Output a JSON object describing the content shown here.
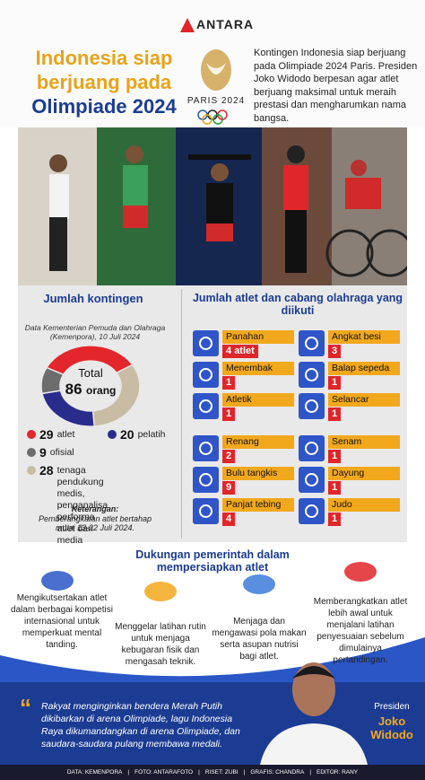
{
  "brand": "ANTARA",
  "title_lines": [
    "Indonesia siap",
    "berjuang pada",
    "Olimpiade 2024"
  ],
  "logo_text": "PARIS 2024",
  "intro": "Kontingen Indonesia siap berjuang pada Olimpiade 2024 Paris. Presiden Joko Widodo berpesan agar atlet berjuang maksimal untuk meraih prestasi dan mengharumkan nama bangsa.",
  "contingent": {
    "title": "Jumlah kontingen",
    "source": "Data Kementerian Pemuda dan Olahraga (Kemenpora), 10 Juli 2024",
    "total_label": "Total",
    "total": 86,
    "total_unit": "orang",
    "groups": [
      {
        "value": 29,
        "label": "atlet",
        "color": "#e3262c"
      },
      {
        "value": 28,
        "label": "tenaga pendukung medis, penganalisa performa atlet dan media",
        "color": "#c9bca4"
      },
      {
        "value": 20,
        "label": "pelatih",
        "color": "#2a2c8c"
      },
      {
        "value": 9,
        "label": "ofisial",
        "color": "#6d6d6d"
      }
    ],
    "note_title": "Keterangan:",
    "note": "Pemberangkatan atlet bertahap mulai 13-22 Juli 2024."
  },
  "sports": {
    "title": "Jumlah atlet dan cabang olahraga yang diikuti",
    "items": [
      {
        "name": "Panahan",
        "value": 4,
        "unit": "atlet"
      },
      {
        "name": "Menembak",
        "value": 1
      },
      {
        "name": "Atletik",
        "value": 1
      },
      {
        "name": "Renang",
        "value": 2
      },
      {
        "name": "Bulu tangkis",
        "value": 9
      },
      {
        "name": "Panjat tebing",
        "value": 4
      },
      {
        "name": "Angkat besi",
        "value": 3
      },
      {
        "name": "Balap sepeda",
        "value": 1
      },
      {
        "name": "Selancar",
        "value": 1
      },
      {
        "name": "Senam",
        "value": 1
      },
      {
        "name": "Dayung",
        "value": 1
      },
      {
        "name": "Judo",
        "value": 1
      }
    ]
  },
  "support": {
    "title": "Dukungan pemerintah dalam mempersiapkan atlet",
    "items": [
      "Mengikutsertakan atlet dalam berbagai kompetisi internasional untuk memperkuat mental tanding.",
      "Menggelar latihan rutin untuk menjaga kebugaran fisik dan mengasah teknik.",
      "Menjaga dan mengawasi pola makan serta asupan nutrisi bagi atlet.",
      "Memberangkatkan atlet lebih awal untuk menjalani latihan penyesuaian sebelum dimulainya pertandingan."
    ]
  },
  "quote": {
    "text": "Rakyat menginginkan bendera Merah Putih dikibarkan di arena Olimpiade, lagu Indonesia Raya dikumandangkan di arena Olimpiade, dan saudara-saudara pulang membawa medali.",
    "role": "Presiden",
    "name": "Joko Widodo"
  },
  "credits": [
    "DATA: KEMENPORA",
    "FOTO: ANTARAFOTO",
    "RISET: ZUBI",
    "GRAFIS: CHANDRA",
    "EDITOR: RANY"
  ]
}
